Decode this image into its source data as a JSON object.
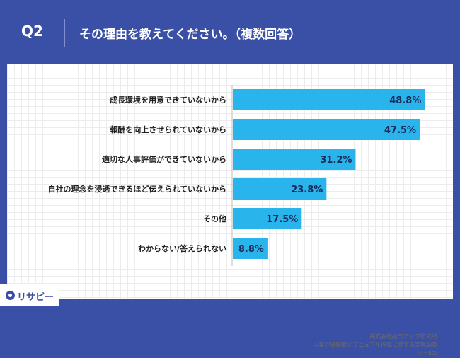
{
  "question": {
    "number": "Q2",
    "title": "その理由を教えてください。（複数回答）"
  },
  "chart_data": {
    "type": "bar",
    "orientation": "horizontal",
    "categories": [
      "成長環境を用意できていないから",
      "報酬を向上させられていないから",
      "適切な人事評価ができていないから",
      "自社の理念を浸透できるほど伝えられていないから",
      "その他",
      "わからない/答えられない"
    ],
    "values": [
      48.8,
      47.5,
      31.2,
      23.8,
      17.5,
      8.8
    ],
    "value_labels": [
      "48.8%",
      "47.5%",
      "31.2%",
      "23.8%",
      "17.5%",
      "8.8%"
    ],
    "xlim": [
      0,
      50
    ],
    "unit": "%",
    "bar_color": "#29b4ec",
    "grid": true
  },
  "source": {
    "line1": "株式会社給与アップ研究所",
    "line2": "人事評価制度とマニュアル作成に関する実態調査",
    "line3": "(n=80)"
  },
  "logo": {
    "text": "リサピー",
    "icon": "location-pin-icon"
  },
  "colors": {
    "background": "#3a4fa6",
    "bar": "#29b4ec",
    "label_text": "#1f1f1f"
  }
}
